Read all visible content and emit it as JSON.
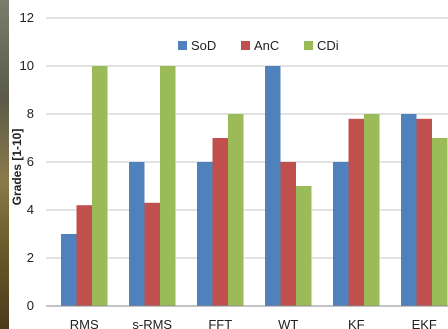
{
  "chart_data": {
    "type": "bar",
    "categories": [
      "RMS",
      "s-RMS",
      "FFT",
      "WT",
      "KF",
      "EKF"
    ],
    "series": [
      {
        "name": "SoD",
        "values": [
          3,
          6,
          6,
          10,
          6,
          8
        ],
        "color": "#4f81bd"
      },
      {
        "name": "AnC",
        "values": [
          4.2,
          4.3,
          7,
          6,
          7.8,
          7.8
        ],
        "color": "#c0504d"
      },
      {
        "name": "CDi",
        "values": [
          10,
          10,
          8,
          5,
          8,
          7
        ],
        "color": "#9bbb59"
      }
    ],
    "ylabel": "Grades [1-10]",
    "ylim": [
      0,
      12
    ],
    "yticks": [
      "0",
      "2",
      "4",
      "6",
      "8",
      "10",
      "12"
    ],
    "grid": true,
    "legend_position": "top-center"
  }
}
